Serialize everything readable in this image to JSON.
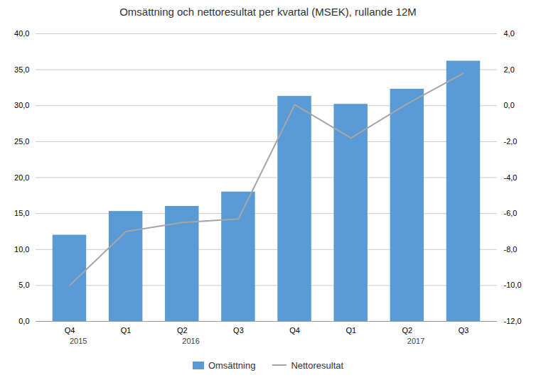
{
  "chart_data": {
    "type": "bar",
    "title": "Omsättning och nettoresultat per kvartal (MSEK), rullande 12M",
    "categories": [
      "Q4",
      "Q1",
      "Q2",
      "Q3",
      "Q4",
      "Q1",
      "Q2",
      "Q3"
    ],
    "series": [
      {
        "name": "Omsättning",
        "type": "bar",
        "color": "#5B9BD5",
        "values": [
          12.0,
          15.3,
          16.0,
          18.0,
          31.3,
          30.2,
          32.3,
          36.2
        ]
      },
      {
        "name": "Nettoresultat",
        "type": "line",
        "color": "#A5A5A5",
        "axis": "y2",
        "values": [
          -10.0,
          -7.0,
          -6.5,
          -6.3,
          0.05,
          -1.8,
          0.1,
          1.8
        ]
      }
    ],
    "ylim": [
      0,
      40
    ],
    "yticks": [
      {
        "value": 0,
        "label": "0,0"
      },
      {
        "value": 5,
        "label": "5,0"
      },
      {
        "value": 10,
        "label": "10,0"
      },
      {
        "value": 15,
        "label": "15,0"
      },
      {
        "value": 20,
        "label": "20,0"
      },
      {
        "value": 25,
        "label": "25,0"
      },
      {
        "value": 30,
        "label": "30,0"
      },
      {
        "value": 35,
        "label": "35,0"
      },
      {
        "value": 40,
        "label": "40,0"
      }
    ],
    "y2lim": [
      -12,
      4
    ],
    "y2ticks": [
      {
        "value": -12,
        "label": "-12,0"
      },
      {
        "value": -10,
        "label": "-10,0"
      },
      {
        "value": -8,
        "label": "-8,0"
      },
      {
        "value": -6,
        "label": "-6,0"
      },
      {
        "value": -4,
        "label": "-4,0"
      },
      {
        "value": -2,
        "label": "-2,0"
      },
      {
        "value": 0,
        "label": "0,0"
      },
      {
        "value": 2,
        "label": "2,0"
      },
      {
        "value": 4,
        "label": "4,0"
      }
    ],
    "annotations": [
      {
        "text": "2015",
        "x": 0
      },
      {
        "text": "2016",
        "x": 2
      },
      {
        "text": "2017",
        "x": 6
      }
    ],
    "grid": true,
    "legend": "bottom"
  }
}
